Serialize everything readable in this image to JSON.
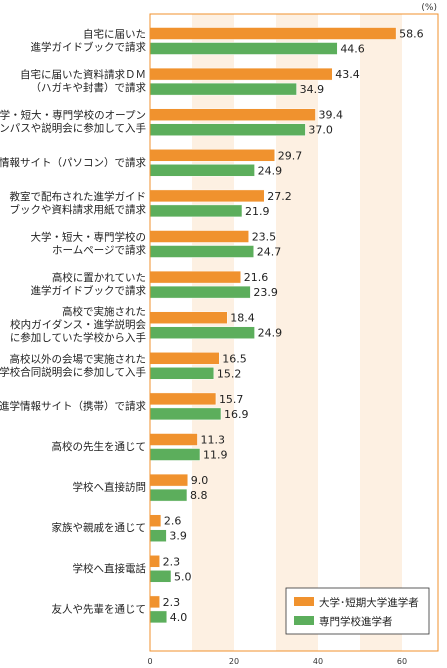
{
  "chart_data": {
    "type": "bar",
    "orientation": "horizontal",
    "unit": "(%)",
    "xlim": [
      0,
      70
    ],
    "x_ticks": [
      "0",
      "20",
      "40",
      "60"
    ],
    "categories": [
      [
        "自宅に届いた",
        "進学ガイドブックで請求"
      ],
      [
        "自宅に届いた資料請求ＤＭ",
        "（ハガキや封書）で請求"
      ],
      [
        "大学・短大・専門学校のオープン",
        "キャンパスや説明会に参加して入手"
      ],
      [
        "進学情報サイト（パソコン）で請求"
      ],
      [
        "教室で配布された進学ガイド",
        "ブックや資料請求用紙で請求"
      ],
      [
        "大学・短大・専門学校の",
        "ホームページで請求"
      ],
      [
        "高校に置かれていた",
        "進学ガイドブックで請求"
      ],
      [
        "高校で実施された",
        "校内ガイダンス・進学説明会",
        "に参加していた学校から入手"
      ],
      [
        "高校以外の会場で実施された",
        "学校合同説明会に参加して入手"
      ],
      [
        "進学情報サイト（携帯）で請求"
      ],
      [
        "高校の先生を通じて"
      ],
      [
        "学校へ直接訪問"
      ],
      [
        "家族や親戚を通じて"
      ],
      [
        "学校へ直接電話"
      ],
      [
        "友人や先輩を通じて"
      ]
    ],
    "series": [
      {
        "name": "大学･短期大学進学者",
        "color": "#f0922e",
        "values": [
          58.6,
          43.4,
          39.4,
          29.7,
          27.2,
          23.5,
          21.6,
          18.4,
          16.5,
          15.7,
          11.3,
          9.0,
          2.6,
          2.3,
          2.3
        ],
        "labels": [
          "58.6",
          "43.4",
          "39.4",
          "29.7",
          "27.2",
          "23.5",
          "21.6",
          "18.4",
          "16.5",
          "15.7",
          "11.3",
          "9.0",
          "2.6",
          "2.3",
          "2.3"
        ]
      },
      {
        "name": "専門学校進学者",
        "color": "#5cae5c",
        "values": [
          44.6,
          34.9,
          37.0,
          24.9,
          21.9,
          24.7,
          23.9,
          24.9,
          15.2,
          16.9,
          11.9,
          8.8,
          3.9,
          5.0,
          4.0
        ],
        "labels": [
          "44.6",
          "34.9",
          "37.0",
          "24.9",
          "21.9",
          "24.7",
          "23.9",
          "24.9",
          "15.2",
          "16.9",
          "11.9",
          "8.8",
          "3.9",
          "5.0",
          "4.0"
        ]
      }
    ],
    "legend_position": "bottom-right",
    "frame_color": "#f0922e",
    "band_color": "#fdf0e2"
  }
}
